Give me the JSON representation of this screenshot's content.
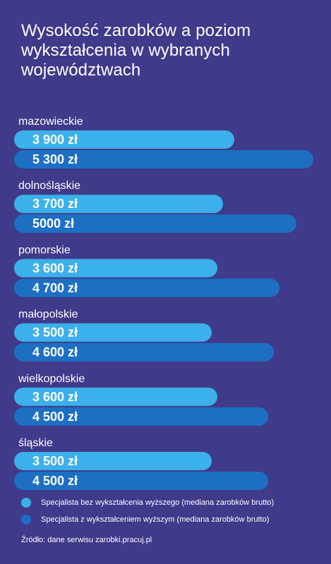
{
  "title_lines": [
    "Wysokość zarobków a poziom",
    "wykształcenia w wybranych",
    "województwach"
  ],
  "colors": {
    "background": "#3f3a8a",
    "series_light": "#3bb0ea",
    "series_dark": "#1d6fc4"
  },
  "chart_data": {
    "type": "bar",
    "orientation": "horizontal",
    "title": "Wysokość zarobków a poziom wykształcenia w wybranych województwach",
    "categories": [
      "mazowieckie",
      "dolnośląskie",
      "pomorskie",
      "małopolskie",
      "wielkopolskie",
      "śląskie"
    ],
    "series": [
      {
        "name": "Specjalista bez wykształcenia wyższego (mediana zarobków brutto)",
        "color": "#3bb0ea",
        "values": [
          3900,
          3700,
          3600,
          3500,
          3600,
          3500
        ],
        "labels": [
          "3 900 zł",
          "3 700 zł",
          "3 600 zł",
          "3 500 zł",
          "3 600 zł",
          "3 500 zł"
        ]
      },
      {
        "name": "Specjalista z wykształceniem wyższym (mediana zarobków brutto)",
        "color": "#1d6fc4",
        "values": [
          5300,
          5000,
          4700,
          4600,
          4500,
          4500
        ],
        "labels": [
          "5 300 zł",
          "5000 zł",
          "4 700 zł",
          "4 600 zł",
          "4 500 zł",
          "4 500 zł"
        ]
      }
    ],
    "legend_position": "bottom",
    "grid": false
  },
  "legend": [
    {
      "label": "Specjalista bez wykształcenia wyższego (mediana zarobków brutto)",
      "color": "#3bb0ea"
    },
    {
      "label": "Specjalista z wykształceniem wyższym (mediana zarobków brutto)",
      "color": "#1d6fc4"
    }
  ],
  "source": "Źródło: dane serwisu zarobki.pracuj.pl"
}
